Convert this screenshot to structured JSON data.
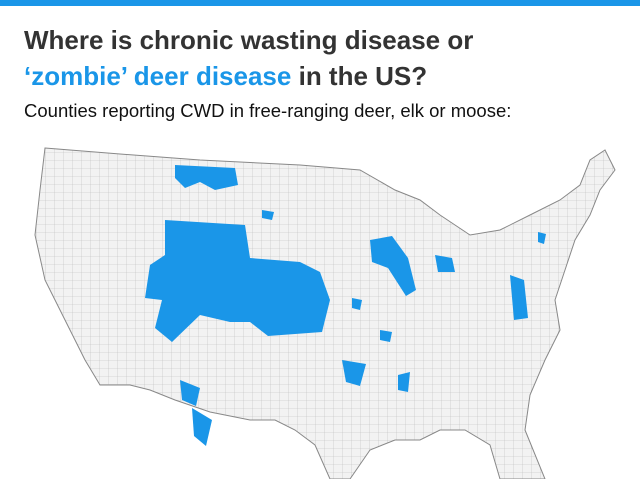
{
  "header": {
    "title_line1": "Where is chronic wasting disease or",
    "title_highlight": "‘zombie’ deer disease",
    "title_end": "in the US?",
    "subtitle": "Counties reporting CWD in free-ranging deer, elk or moose:"
  }
}
